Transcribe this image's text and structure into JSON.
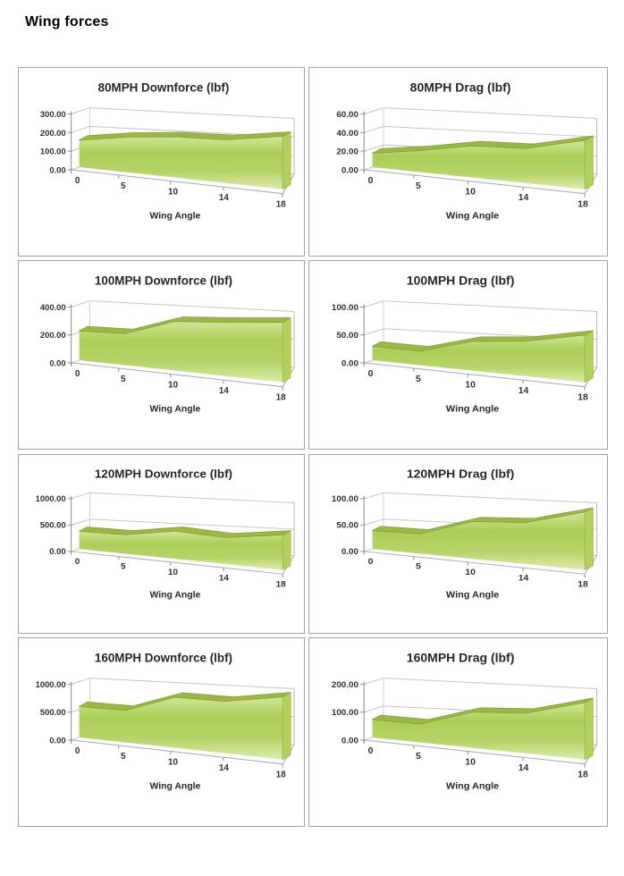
{
  "page": {
    "title": "Wing forces"
  },
  "colors": {
    "area_gradient_top": "#d2e697",
    "area_gradient_mid": "#abce57",
    "area_gradient_low": "#b7d369",
    "area_gradient_base": "#dcecae",
    "band_top": "#9cb747",
    "band_edge": "#85a038",
    "side_face": "#b3cf5e",
    "gridline": "#c3c3c3",
    "axis": "#8c8c8c",
    "floor": "#a8a8a8",
    "panel_border": "#a3a3a3",
    "text": "#262626"
  },
  "chart_data": [
    {
      "type": "area",
      "pseudo_3d": true,
      "title": "80MPH Downforce (lbf)",
      "xlabel": "Wing Angle",
      "categories": [
        "0",
        "5",
        "10",
        "14",
        "18"
      ],
      "values": [
        145,
        170,
        180,
        175,
        195
      ],
      "ylim": [
        0,
        300
      ],
      "yticks": [
        0,
        100,
        200,
        300
      ],
      "ytick_labels": [
        "0.00",
        "100.00",
        "200.00",
        "300.00"
      ],
      "legend": "none",
      "grid": "on"
    },
    {
      "type": "area",
      "pseudo_3d": true,
      "title": "80MPH Drag (lbf)",
      "xlabel": "Wing Angle",
      "categories": [
        "0",
        "5",
        "10",
        "14",
        "18"
      ],
      "values": [
        15,
        21,
        28,
        28,
        36
      ],
      "ylim": [
        0,
        60
      ],
      "yticks": [
        0,
        20,
        40,
        60
      ],
      "ytick_labels": [
        "0.00",
        "20.00",
        "40.00",
        "60.00"
      ],
      "legend": "none",
      "grid": "on"
    },
    {
      "type": "area",
      "pseudo_3d": true,
      "title": "100MPH Downforce (lbf)",
      "xlabel": "Wing Angle",
      "categories": [
        "0",
        "5",
        "10",
        "14",
        "18"
      ],
      "values": [
        210,
        205,
        290,
        290,
        295
      ],
      "ylim": [
        0,
        400
      ],
      "yticks": [
        0,
        200,
        400
      ],
      "ytick_labels": [
        "0.00",
        "200.00",
        "400.00"
      ],
      "legend": "none",
      "grid": "on"
    },
    {
      "type": "area",
      "pseudo_3d": true,
      "title": "100MPH Drag (lbf)",
      "xlabel": "Wing Angle",
      "categories": [
        "0",
        "5",
        "10",
        "14",
        "18"
      ],
      "values": [
        25,
        23,
        43,
        47,
        58
      ],
      "ylim": [
        0,
        100
      ],
      "yticks": [
        0,
        50,
        100
      ],
      "ytick_labels": [
        "0.00",
        "50.00",
        "100.00"
      ],
      "legend": "none",
      "grid": "on"
    },
    {
      "type": "area",
      "pseudo_3d": true,
      "title": "120MPH Downforce (lbf)",
      "xlabel": "Wing Angle",
      "categories": [
        "0",
        "5",
        "10",
        "14",
        "18"
      ],
      "values": [
        335,
        325,
        430,
        375,
        455
      ],
      "ylim": [
        0,
        1000
      ],
      "yticks": [
        0,
        500,
        1000
      ],
      "ytick_labels": [
        "0.00",
        "500.00",
        "1000.00"
      ],
      "legend": "none",
      "grid": "on"
    },
    {
      "type": "area",
      "pseudo_3d": true,
      "title": "120MPH Drag (lbf)",
      "xlabel": "Wing Angle",
      "categories": [
        "0",
        "5",
        "10",
        "14",
        "18"
      ],
      "values": [
        35,
        34,
        58,
        59,
        75
      ],
      "ylim": [
        0,
        100
      ],
      "yticks": [
        0,
        50,
        100
      ],
      "ytick_labels": [
        "0.00",
        "50.00",
        "100.00"
      ],
      "legend": "none",
      "grid": "on"
    },
    {
      "type": "area",
      "pseudo_3d": true,
      "title": "160MPH Downforce (lbf)",
      "xlabel": "Wing Angle",
      "categories": [
        "0",
        "5",
        "10",
        "14",
        "18"
      ],
      "values": [
        555,
        520,
        745,
        700,
        770
      ],
      "ylim": [
        0,
        1000
      ],
      "yticks": [
        0,
        500,
        1000
      ],
      "ytick_labels": [
        "0.00",
        "500.00",
        "1000.00"
      ],
      "legend": "none",
      "grid": "on"
    },
    {
      "type": "area",
      "pseudo_3d": true,
      "title": "160MPH Drag (lbf)",
      "xlabel": "Wing Angle",
      "categories": [
        "0",
        "5",
        "10",
        "14",
        "18"
      ],
      "values": [
        64,
        60,
        105,
        108,
        140
      ],
      "ylim": [
        0,
        200
      ],
      "yticks": [
        0,
        100,
        200
      ],
      "ytick_labels": [
        "0.00",
        "100.00",
        "200.00"
      ],
      "legend": "none",
      "grid": "on"
    }
  ]
}
